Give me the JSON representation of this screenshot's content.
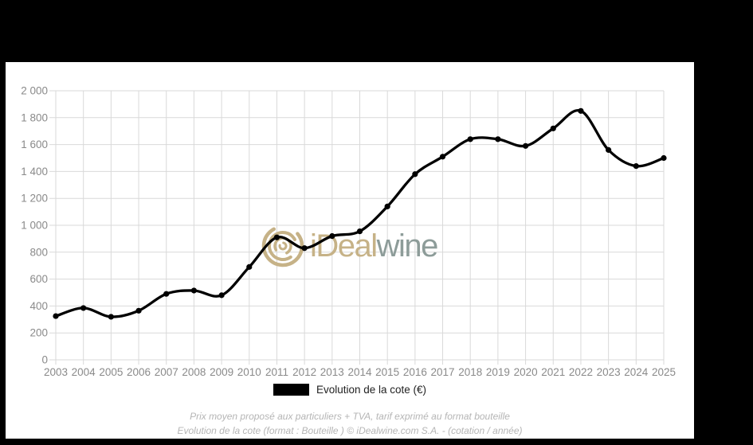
{
  "frame": {
    "background_color": "#000000",
    "panel_color": "#ffffff"
  },
  "chart_data": {
    "type": "line",
    "title": "",
    "xlabel": "",
    "ylabel": "",
    "x": [
      2003,
      2004,
      2005,
      2006,
      2007,
      2008,
      2009,
      2010,
      2011,
      2012,
      2013,
      2014,
      2015,
      2016,
      2017,
      2018,
      2019,
      2020,
      2021,
      2022,
      2023,
      2024,
      2025
    ],
    "series": [
      {
        "name": "Evolution de la cote (€)",
        "color": "#000000",
        "marker": "circle",
        "values": [
          325,
          385,
          320,
          365,
          490,
          515,
          480,
          690,
          910,
          830,
          920,
          955,
          1140,
          1380,
          1510,
          1640,
          1640,
          1590,
          1720,
          1850,
          1560,
          1440,
          1500
        ]
      }
    ],
    "ylim": [
      0,
      2000
    ],
    "ytick_step": 200,
    "ytick_labels": [
      "0",
      "200",
      "400",
      "600",
      "800",
      "1 000",
      "1 200",
      "1 400",
      "1 600",
      "1 800",
      "2 000"
    ],
    "grid": true,
    "gridline_color": "#d9d9d9",
    "axis_label_color": "#8a8a8a",
    "legend_position": "bottom"
  },
  "legend": {
    "swatch_color": "#000000",
    "label": "Evolution de la cote (€)"
  },
  "watermark": {
    "icon": "swirl-spiral-icon",
    "text_primary": "iDeal",
    "text_secondary": "wine",
    "color_primary": "#c6b287",
    "color_secondary": "#8d9c99"
  },
  "footer": {
    "line1": "Prix moyen proposé aux particuliers + TVA, tarif exprimé au format bouteille",
    "line2": "Evolution de la cote (format : Bouteille ) © iDealwine.com S.A. - (cotation / année)"
  }
}
